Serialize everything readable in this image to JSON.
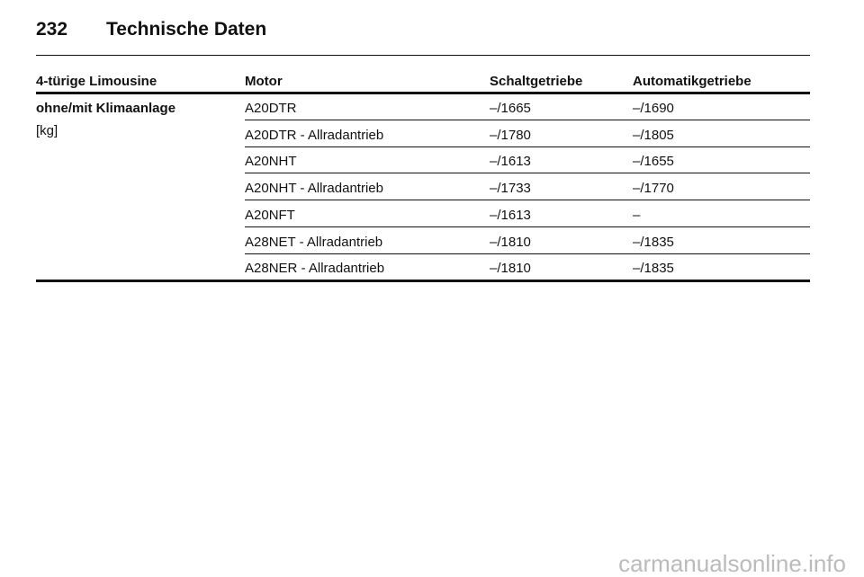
{
  "header": {
    "page_number": "232",
    "title": "Technische Daten"
  },
  "table": {
    "columns": [
      "4-türige Limousine",
      "Motor",
      "Schaltgetriebe",
      "Automatikgetriebe"
    ],
    "row_label": "ohne/mit Klimaanlage",
    "row_unit": "[kg]",
    "rows": [
      [
        "A20DTR",
        "–/1665",
        "–/1690"
      ],
      [
        "A20DTR - Allradantrieb",
        "–/1780",
        "–/1805"
      ],
      [
        "A20NHT",
        "–/1613",
        "–/1655"
      ],
      [
        "A20NHT - Allradantrieb",
        "–/1733",
        "–/1770"
      ],
      [
        "A20NFT",
        "–/1613",
        "–"
      ],
      [
        "A28NET - Allradantrieb",
        "–/1810",
        "–/1835"
      ],
      [
        "A28NER - Allradantrieb",
        "–/1810",
        "–/1835"
      ]
    ]
  },
  "watermark": "carmanualsonline.info"
}
